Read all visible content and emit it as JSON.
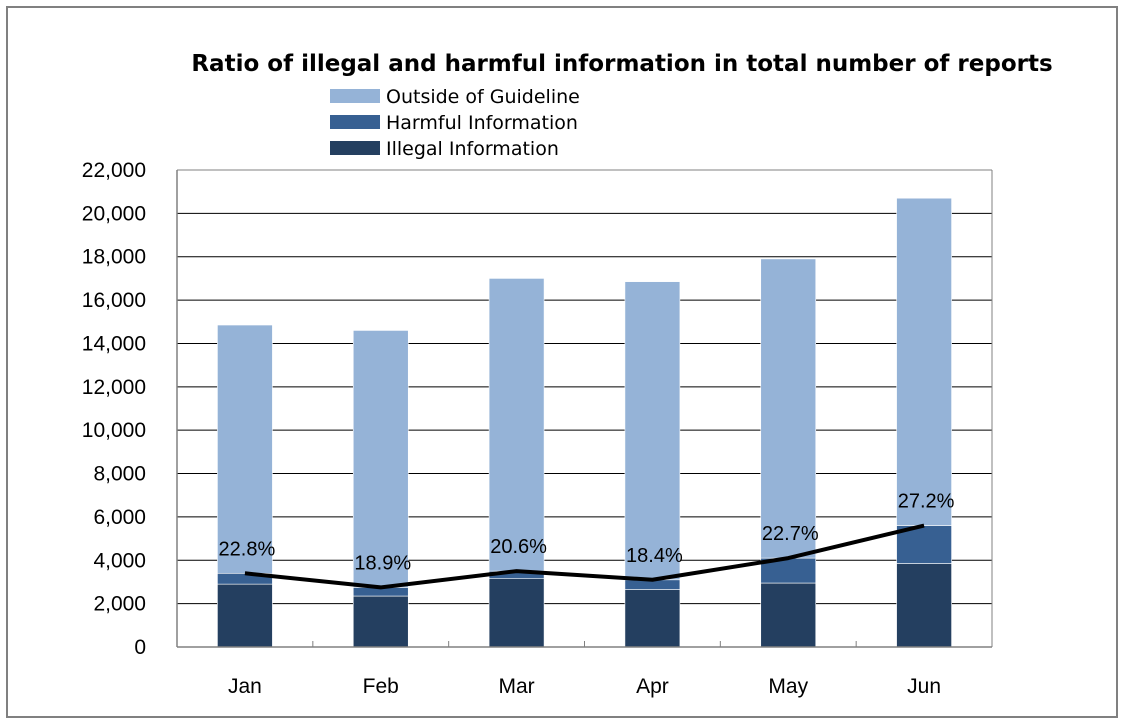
{
  "chart_data": {
    "type": "bar",
    "stacked": true,
    "title": "Ratio of illegal and harmful information in total number of reports",
    "categories": [
      "Jan",
      "Feb",
      "Mar",
      "Apr",
      "May",
      "Jun"
    ],
    "series": [
      {
        "name": "Illegal  Information",
        "color": "#243f60",
        "values": [
          2900,
          2350,
          3150,
          2650,
          2950,
          3850
        ]
      },
      {
        "name": "Harmful Information",
        "color": "#376092",
        "values": [
          500,
          400,
          350,
          450,
          1150,
          1750
        ]
      },
      {
        "name": "Outside of Guideline",
        "color": "#95b3d7",
        "values": [
          11450,
          11850,
          13500,
          13750,
          13800,
          15100
        ]
      }
    ],
    "line": {
      "color": "#000000",
      "values": [
        3400,
        2750,
        3500,
        3100,
        4100,
        5600
      ],
      "labels": [
        "22.8%",
        "18.9%",
        "20.6%",
        "18.4%",
        "22.7%",
        "27.2%"
      ]
    },
    "ylim": [
      0,
      22000
    ],
    "yticks": [
      0,
      2000,
      4000,
      6000,
      8000,
      10000,
      12000,
      14000,
      16000,
      18000,
      20000,
      22000
    ],
    "ytick_labels": [
      "0",
      "2,000",
      "4,000",
      "6,000",
      "8,000",
      "10,000",
      "12,000",
      "14,000",
      "16,000",
      "18,000",
      "20,000",
      "22,000"
    ],
    "grid": true,
    "legend_position": "top-left"
  }
}
